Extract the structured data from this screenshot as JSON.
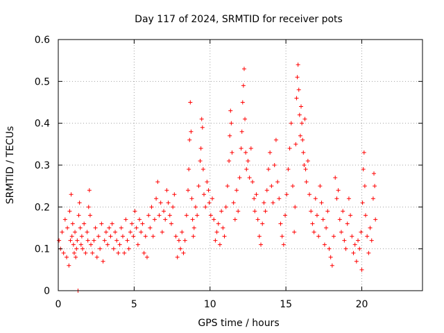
{
  "chart_data": {
    "type": "scatter",
    "title": "Day 117 of 2024, SRMTID for receiver pots",
    "xlabel": "GPS time / hours",
    "ylabel": "SRMTID / TECUs",
    "xlim": [
      0,
      24
    ],
    "ylim": [
      0,
      0.6
    ],
    "xticks": [
      0,
      5,
      10,
      15,
      20
    ],
    "xtick_labels": [
      "0",
      "5",
      "10",
      "15",
      "20"
    ],
    "yticks": [
      0,
      0.1,
      0.2,
      0.3,
      0.4,
      0.5,
      0.6
    ],
    "ytick_labels": [
      "0",
      "0.1",
      "0.2",
      "0.3",
      "0.4",
      "0.5",
      "0.6"
    ],
    "grid": true,
    "marker": "+",
    "color": "#ff0000",
    "series": [
      {
        "name": "SRMTID",
        "points": [
          [
            0.05,
            0.12
          ],
          [
            0.15,
            0.1
          ],
          [
            0.25,
            0.14
          ],
          [
            0.35,
            0.09
          ],
          [
            0.45,
            0.17
          ],
          [
            0.55,
            0.08
          ],
          [
            0.6,
            0.15
          ],
          [
            0.7,
            0.06
          ],
          [
            0.75,
            0.19
          ],
          [
            0.8,
            0.12
          ],
          [
            0.85,
            0.23
          ],
          [
            0.9,
            0.13
          ],
          [
            0.95,
            0.16
          ],
          [
            1.0,
            0.11
          ],
          [
            1.05,
            0.09
          ],
          [
            1.1,
            0.14
          ],
          [
            1.15,
            0.08
          ],
          [
            1.2,
            0.1
          ],
          [
            1.25,
            0.12
          ],
          [
            1.3,
            0.0
          ],
          [
            1.35,
            0.18
          ],
          [
            1.4,
            0.21
          ],
          [
            1.45,
            0.15
          ],
          [
            1.5,
            0.11
          ],
          [
            1.55,
            0.13
          ],
          [
            1.6,
            0.1
          ],
          [
            1.7,
            0.16
          ],
          [
            1.8,
            0.09
          ],
          [
            1.9,
            0.14
          ],
          [
            1.95,
            0.12
          ],
          [
            2.0,
            0.2
          ],
          [
            2.05,
            0.24
          ],
          [
            2.1,
            0.18
          ],
          [
            2.15,
            0.11
          ],
          [
            2.25,
            0.09
          ],
          [
            2.35,
            0.12
          ],
          [
            2.45,
            0.15
          ],
          [
            2.55,
            0.08
          ],
          [
            2.65,
            0.13
          ],
          [
            2.75,
            0.1
          ],
          [
            2.85,
            0.16
          ],
          [
            2.95,
            0.07
          ],
          [
            3.05,
            0.12
          ],
          [
            3.15,
            0.14
          ],
          [
            3.25,
            0.11
          ],
          [
            3.35,
            0.15
          ],
          [
            3.45,
            0.13
          ],
          [
            3.55,
            0.16
          ],
          [
            3.65,
            0.1
          ],
          [
            3.75,
            0.14
          ],
          [
            3.85,
            0.12
          ],
          [
            3.95,
            0.09
          ],
          [
            4.05,
            0.11
          ],
          [
            4.15,
            0.15
          ],
          [
            4.25,
            0.13
          ],
          [
            4.35,
            0.09
          ],
          [
            4.45,
            0.17
          ],
          [
            4.55,
            0.12
          ],
          [
            4.65,
            0.1
          ],
          [
            4.75,
            0.14
          ],
          [
            4.85,
            0.16
          ],
          [
            4.95,
            0.13
          ],
          [
            5.05,
            0.19
          ],
          [
            5.15,
            0.15
          ],
          [
            5.25,
            0.11
          ],
          [
            5.35,
            0.17
          ],
          [
            5.45,
            0.14
          ],
          [
            5.55,
            0.16
          ],
          [
            5.65,
            0.09
          ],
          [
            5.75,
            0.13
          ],
          [
            5.85,
            0.08
          ],
          [
            5.95,
            0.18
          ],
          [
            6.05,
            0.15
          ],
          [
            6.15,
            0.2
          ],
          [
            6.25,
            0.13
          ],
          [
            6.35,
            0.17
          ],
          [
            6.45,
            0.22
          ],
          [
            6.55,
            0.26
          ],
          [
            6.65,
            0.18
          ],
          [
            6.75,
            0.21
          ],
          [
            6.85,
            0.14
          ],
          [
            6.95,
            0.19
          ],
          [
            7.05,
            0.17
          ],
          [
            7.15,
            0.24
          ],
          [
            7.25,
            0.21
          ],
          [
            7.35,
            0.18
          ],
          [
            7.45,
            0.16
          ],
          [
            7.55,
            0.2
          ],
          [
            7.65,
            0.23
          ],
          [
            7.75,
            0.13
          ],
          [
            7.85,
            0.08
          ],
          [
            7.95,
            0.12
          ],
          [
            8.05,
            0.1
          ],
          [
            8.15,
            0.14
          ],
          [
            8.25,
            0.09
          ],
          [
            8.35,
            0.12
          ],
          [
            8.45,
            0.18
          ],
          [
            8.55,
            0.24
          ],
          [
            8.6,
            0.29
          ],
          [
            8.65,
            0.36
          ],
          [
            8.7,
            0.45
          ],
          [
            8.75,
            0.38
          ],
          [
            8.8,
            0.22
          ],
          [
            8.85,
            0.17
          ],
          [
            8.9,
            0.13
          ],
          [
            8.95,
            0.15
          ],
          [
            9.05,
            0.2
          ],
          [
            9.15,
            0.18
          ],
          [
            9.25,
            0.25
          ],
          [
            9.35,
            0.31
          ],
          [
            9.4,
            0.34
          ],
          [
            9.45,
            0.41
          ],
          [
            9.5,
            0.39
          ],
          [
            9.55,
            0.29
          ],
          [
            9.6,
            0.23
          ],
          [
            9.7,
            0.2
          ],
          [
            9.8,
            0.26
          ],
          [
            9.9,
            0.24
          ],
          [
            9.95,
            0.21
          ],
          [
            10.05,
            0.18
          ],
          [
            10.15,
            0.22
          ],
          [
            10.25,
            0.17
          ],
          [
            10.35,
            0.12
          ],
          [
            10.45,
            0.14
          ],
          [
            10.55,
            0.16
          ],
          [
            10.65,
            0.11
          ],
          [
            10.75,
            0.19
          ],
          [
            10.85,
            0.15
          ],
          [
            10.95,
            0.13
          ],
          [
            11.05,
            0.2
          ],
          [
            11.15,
            0.25
          ],
          [
            11.25,
            0.31
          ],
          [
            11.3,
            0.37
          ],
          [
            11.35,
            0.43
          ],
          [
            11.4,
            0.4
          ],
          [
            11.45,
            0.33
          ],
          [
            11.55,
            0.21
          ],
          [
            11.65,
            0.17
          ],
          [
            11.75,
            0.24
          ],
          [
            11.85,
            0.19
          ],
          [
            11.95,
            0.27
          ],
          [
            12.05,
            0.34
          ],
          [
            12.1,
            0.38
          ],
          [
            12.15,
            0.45
          ],
          [
            12.2,
            0.49
          ],
          [
            12.25,
            0.53
          ],
          [
            12.3,
            0.41
          ],
          [
            12.35,
            0.33
          ],
          [
            12.4,
            0.29
          ],
          [
            12.5,
            0.31
          ],
          [
            12.6,
            0.27
          ],
          [
            12.7,
            0.34
          ],
          [
            12.8,
            0.26
          ],
          [
            12.9,
            0.22
          ],
          [
            12.95,
            0.19
          ],
          [
            13.05,
            0.23
          ],
          [
            13.15,
            0.17
          ],
          [
            13.25,
            0.13
          ],
          [
            13.35,
            0.11
          ],
          [
            13.45,
            0.16
          ],
          [
            13.55,
            0.21
          ],
          [
            13.65,
            0.19
          ],
          [
            13.75,
            0.24
          ],
          [
            13.85,
            0.29
          ],
          [
            13.95,
            0.33
          ],
          [
            14.05,
            0.25
          ],
          [
            14.15,
            0.21
          ],
          [
            14.25,
            0.3
          ],
          [
            14.35,
            0.36
          ],
          [
            14.45,
            0.26
          ],
          [
            14.55,
            0.22
          ],
          [
            14.65,
            0.16
          ],
          [
            14.75,
            0.13
          ],
          [
            14.85,
            0.11
          ],
          [
            14.95,
            0.18
          ],
          [
            15.05,
            0.23
          ],
          [
            15.15,
            0.29
          ],
          [
            15.25,
            0.34
          ],
          [
            15.35,
            0.4
          ],
          [
            15.45,
            0.25
          ],
          [
            15.55,
            0.14
          ],
          [
            15.6,
            0.2
          ],
          [
            15.65,
            0.35
          ],
          [
            15.7,
            0.46
          ],
          [
            15.75,
            0.51
          ],
          [
            15.8,
            0.54
          ],
          [
            15.85,
            0.48
          ],
          [
            15.9,
            0.42
          ],
          [
            15.95,
            0.37
          ],
          [
            16.0,
            0.44
          ],
          [
            16.05,
            0.4
          ],
          [
            16.1,
            0.36
          ],
          [
            16.15,
            0.33
          ],
          [
            16.2,
            0.3
          ],
          [
            16.25,
            0.41
          ],
          [
            16.3,
            0.29
          ],
          [
            16.35,
            0.26
          ],
          [
            16.45,
            0.31
          ],
          [
            16.55,
            0.23
          ],
          [
            16.65,
            0.19
          ],
          [
            16.75,
            0.16
          ],
          [
            16.85,
            0.14
          ],
          [
            16.95,
            0.22
          ],
          [
            17.05,
            0.18
          ],
          [
            17.15,
            0.13
          ],
          [
            17.25,
            0.25
          ],
          [
            17.35,
            0.21
          ],
          [
            17.45,
            0.17
          ],
          [
            17.55,
            0.11
          ],
          [
            17.65,
            0.15
          ],
          [
            17.75,
            0.19
          ],
          [
            17.85,
            0.1
          ],
          [
            17.95,
            0.08
          ],
          [
            18.05,
            0.06
          ],
          [
            18.15,
            0.13
          ],
          [
            18.25,
            0.27
          ],
          [
            18.35,
            0.22
          ],
          [
            18.45,
            0.24
          ],
          [
            18.55,
            0.17
          ],
          [
            18.65,
            0.14
          ],
          [
            18.75,
            0.19
          ],
          [
            18.85,
            0.12
          ],
          [
            18.95,
            0.1
          ],
          [
            19.05,
            0.16
          ],
          [
            19.15,
            0.22
          ],
          [
            19.25,
            0.18
          ],
          [
            19.35,
            0.13
          ],
          [
            19.45,
            0.09
          ],
          [
            19.55,
            0.11
          ],
          [
            19.65,
            0.07
          ],
          [
            19.75,
            0.12
          ],
          [
            19.85,
            0.1
          ],
          [
            19.95,
            0.14
          ],
          [
            20.0,
            0.05
          ],
          [
            20.05,
            0.21
          ],
          [
            20.1,
            0.29
          ],
          [
            20.15,
            0.33
          ],
          [
            20.2,
            0.25
          ],
          [
            20.25,
            0.18
          ],
          [
            20.35,
            0.13
          ],
          [
            20.45,
            0.09
          ],
          [
            20.55,
            0.15
          ],
          [
            20.65,
            0.12
          ],
          [
            20.75,
            0.22
          ],
          [
            20.8,
            0.28
          ],
          [
            20.85,
            0.25
          ],
          [
            20.9,
            0.17
          ]
        ]
      }
    ]
  }
}
